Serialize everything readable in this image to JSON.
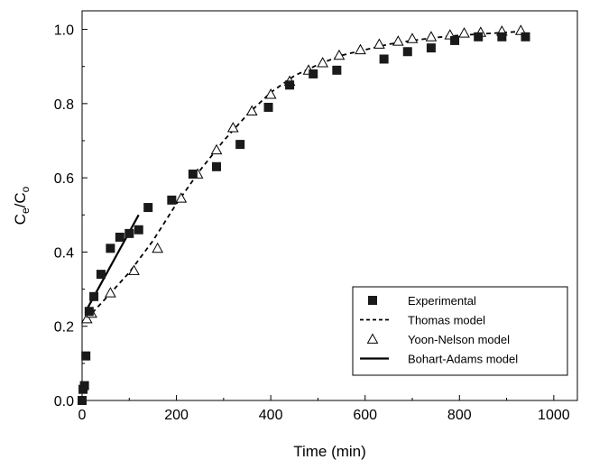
{
  "chart_data": {
    "type": "scatter",
    "xlabel": "Time (min)",
    "ylabel": {
      "base": "C",
      "sub1": "e",
      "slash": "/C",
      "sub2": "o"
    },
    "xlim": [
      0,
      1050
    ],
    "ylim": [
      0,
      1.05
    ],
    "x_ticks": [
      0,
      200,
      400,
      600,
      800,
      1000
    ],
    "y_ticks": [
      0.0,
      0.2,
      0.4,
      0.6,
      0.8,
      1.0
    ],
    "x_tick_labels": [
      "0",
      "200",
      "400",
      "600",
      "800",
      "1000"
    ],
    "y_tick_labels": [
      "0.0",
      "0.2",
      "0.4",
      "0.6",
      "0.8",
      "1.0"
    ],
    "grid": false,
    "legend_position": "bottom-right",
    "series": [
      {
        "name": "Experimental",
        "style": "filled-square",
        "color": "#1a1a1a",
        "points": [
          [
            0,
            0.0
          ],
          [
            2,
            0.03
          ],
          [
            5,
            0.04
          ],
          [
            8,
            0.12
          ],
          [
            15,
            0.24
          ],
          [
            25,
            0.28
          ],
          [
            40,
            0.34
          ],
          [
            60,
            0.41
          ],
          [
            80,
            0.44
          ],
          [
            100,
            0.45
          ],
          [
            120,
            0.46
          ],
          [
            140,
            0.52
          ],
          [
            190,
            0.54
          ],
          [
            235,
            0.61
          ],
          [
            285,
            0.63
          ],
          [
            335,
            0.69
          ],
          [
            395,
            0.79
          ],
          [
            440,
            0.85
          ],
          [
            490,
            0.88
          ],
          [
            540,
            0.89
          ],
          [
            640,
            0.92
          ],
          [
            690,
            0.94
          ],
          [
            740,
            0.95
          ],
          [
            790,
            0.97
          ],
          [
            840,
            0.98
          ],
          [
            890,
            0.98
          ],
          [
            940,
            0.98
          ]
        ]
      },
      {
        "name": "Thomas model",
        "style": "dashed-line",
        "color": "#000000",
        "points": [
          [
            10,
            0.22
          ],
          [
            50,
            0.275
          ],
          [
            100,
            0.345
          ],
          [
            150,
            0.43
          ],
          [
            200,
            0.53
          ],
          [
            250,
            0.62
          ],
          [
            300,
            0.7
          ],
          [
            350,
            0.77
          ],
          [
            400,
            0.83
          ],
          [
            450,
            0.875
          ],
          [
            500,
            0.905
          ],
          [
            550,
            0.93
          ],
          [
            600,
            0.945
          ],
          [
            650,
            0.96
          ],
          [
            700,
            0.97
          ],
          [
            750,
            0.978
          ],
          [
            800,
            0.984
          ],
          [
            850,
            0.988
          ],
          [
            900,
            0.992
          ],
          [
            940,
            0.995
          ]
        ]
      },
      {
        "name": "Yoon-Nelson model",
        "style": "open-triangle",
        "color": "#000000",
        "points": [
          [
            10,
            0.22
          ],
          [
            20,
            0.235
          ],
          [
            60,
            0.29
          ],
          [
            110,
            0.35
          ],
          [
            160,
            0.41
          ],
          [
            210,
            0.545
          ],
          [
            245,
            0.61
          ],
          [
            285,
            0.675
          ],
          [
            320,
            0.735
          ],
          [
            360,
            0.78
          ],
          [
            400,
            0.825
          ],
          [
            440,
            0.86
          ],
          [
            480,
            0.89
          ],
          [
            510,
            0.91
          ],
          [
            545,
            0.93
          ],
          [
            590,
            0.945
          ],
          [
            630,
            0.96
          ],
          [
            670,
            0.968
          ],
          [
            700,
            0.975
          ],
          [
            740,
            0.98
          ],
          [
            780,
            0.985
          ],
          [
            810,
            0.99
          ],
          [
            845,
            0.992
          ],
          [
            890,
            0.995
          ],
          [
            930,
            0.997
          ]
        ]
      },
      {
        "name": "Bohart-Adams model",
        "style": "solid-line",
        "color": "#000000",
        "points": [
          [
            10,
            0.245
          ],
          [
            120,
            0.5
          ]
        ]
      }
    ]
  }
}
